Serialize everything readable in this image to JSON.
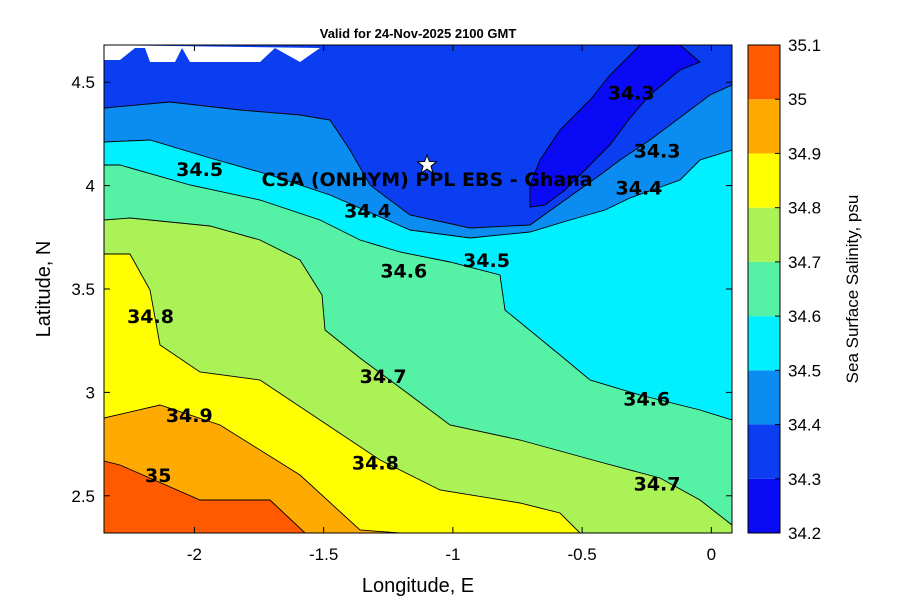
{
  "chart_data": {
    "type": "contour",
    "title": "Valid for 24-Nov-2025 2100 GMT",
    "xlabel": "Longitude, E",
    "ylabel": "Latitude, N",
    "xlim": [
      -2.35,
      0.08
    ],
    "ylim": [
      2.32,
      4.68
    ],
    "x_ticks": [
      -2,
      -1.5,
      -1,
      -0.5,
      0
    ],
    "x_tick_labels": [
      "-2",
      "-1.5",
      "-1",
      "-0.5",
      "0"
    ],
    "y_ticks": [
      2.5,
      3,
      3.5,
      4,
      4.5
    ],
    "y_tick_labels": [
      "2.5",
      "3",
      "3.5",
      "4",
      "4.5"
    ],
    "colorbar": {
      "label": "Sea Surface Salinity, psu",
      "levels": [
        34.2,
        34.3,
        34.4,
        34.5,
        34.6,
        34.7,
        34.8,
        34.9,
        35,
        35.1
      ],
      "level_labels": [
        "34.2",
        "34.3",
        "34.4",
        "34.5",
        "34.6",
        "34.7",
        "34.8",
        "34.9",
        "35",
        "35.1"
      ],
      "colors": [
        "#0a0af5",
        "#0a3ef0",
        "#0a8cf0",
        "#00f0ff",
        "#55f2a6",
        "#aaf255",
        "#ffff00",
        "#ffaa00",
        "#ff5a00"
      ]
    },
    "contour_labels": [
      {
        "text": "34.3",
        "lon": -0.31,
        "lat": 4.45
      },
      {
        "text": "34.3",
        "lon": -0.21,
        "lat": 4.17
      },
      {
        "text": "34.4",
        "lon": -0.28,
        "lat": 3.99
      },
      {
        "text": "34.4",
        "lon": -1.33,
        "lat": 3.88
      },
      {
        "text": "34.5",
        "lon": -1.98,
        "lat": 4.08
      },
      {
        "text": "34.5",
        "lon": -0.87,
        "lat": 3.64
      },
      {
        "text": "34.6",
        "lon": -1.19,
        "lat": 3.59
      },
      {
        "text": "34.6",
        "lon": -0.25,
        "lat": 2.97
      },
      {
        "text": "34.7",
        "lon": -1.27,
        "lat": 3.08
      },
      {
        "text": "34.7",
        "lon": -0.21,
        "lat": 2.56
      },
      {
        "text": "34.8",
        "lon": -2.17,
        "lat": 3.37
      },
      {
        "text": "34.8",
        "lon": -1.3,
        "lat": 2.66
      },
      {
        "text": "34.9",
        "lon": -2.02,
        "lat": 2.89
      },
      {
        "text": "35",
        "lon": -2.14,
        "lat": 2.6
      }
    ],
    "marker": {
      "symbol": "star",
      "lon": -1.1,
      "lat": 4.1,
      "label": "CSA (ONHYM) PPL EBS  - Ghana"
    },
    "grid": false
  }
}
